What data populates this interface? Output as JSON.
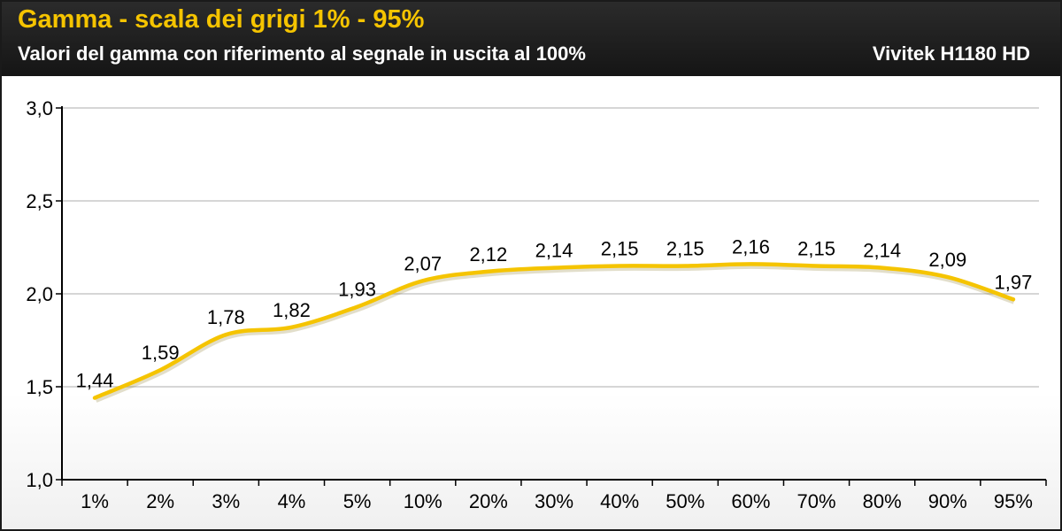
{
  "header": {
    "title": "Gamma - scala dei grigi 1% - 95%",
    "subtitle": "Valori del gamma con riferimento al segnale in uscita al 100%",
    "model": "Vivitek H1180 HD"
  },
  "chart_data": {
    "type": "line",
    "title": "Gamma - scala dei grigi 1% - 95%",
    "subtitle": "Valori del gamma con riferimento al segnale in uscita al 100%",
    "xlabel": "",
    "ylabel": "",
    "categories": [
      "1%",
      "2%",
      "3%",
      "4%",
      "5%",
      "10%",
      "20%",
      "30%",
      "40%",
      "50%",
      "60%",
      "70%",
      "80%",
      "90%",
      "95%"
    ],
    "series": [
      {
        "values": [
          1.44,
          1.59,
          1.78,
          1.82,
          1.93,
          2.07,
          2.12,
          2.14,
          2.15,
          2.15,
          2.16,
          2.15,
          2.14,
          2.09,
          1.97
        ],
        "labels": [
          "1,44",
          "1,59",
          "1,78",
          "1,82",
          "1,93",
          "2,07",
          "2,12",
          "2,14",
          "2,15",
          "2,15",
          "2,16",
          "2,15",
          "2,14",
          "2,09",
          "1,97"
        ],
        "color": "#f5c400"
      }
    ],
    "ylim": [
      1.0,
      3.0
    ],
    "yticks": [
      1.0,
      1.5,
      2.0,
      2.5,
      3.0
    ],
    "ytick_labels": [
      "1,0",
      "1,5",
      "2,0",
      "2,5",
      "3,0"
    ],
    "grid": true,
    "grid_color": "#c8c8c8",
    "legend": "none"
  }
}
